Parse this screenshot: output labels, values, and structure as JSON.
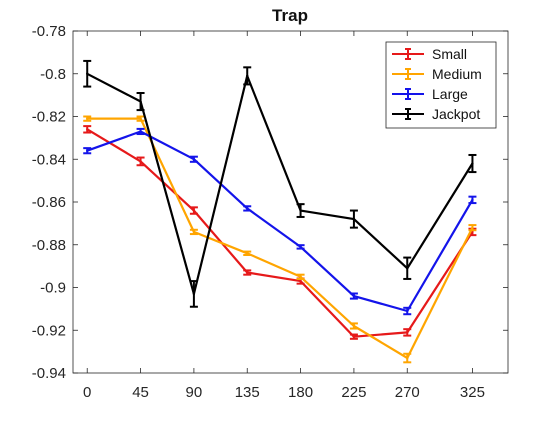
{
  "chart_data": {
    "type": "line",
    "title": "Trap",
    "xlabel": "",
    "ylabel": "",
    "x": [
      0,
      45,
      90,
      135,
      180,
      225,
      270,
      325
    ],
    "xlim": [
      -12,
      355
    ],
    "ylim": [
      -0.94,
      -0.78
    ],
    "x_ticks": [
      0,
      45,
      90,
      135,
      180,
      225,
      270,
      325
    ],
    "x_tick_labels": [
      "0",
      "45",
      "90",
      "135",
      "180",
      "225",
      "270",
      "325"
    ],
    "y_ticks": [
      -0.94,
      -0.92,
      -0.9,
      -0.88,
      -0.86,
      -0.84,
      -0.82,
      -0.8,
      -0.78
    ],
    "y_tick_labels": [
      "-0.94",
      "-0.92",
      "-0.9",
      "-0.88",
      "-0.86",
      "-0.84",
      "-0.82",
      "-0.8",
      "-0.78"
    ],
    "grid": false,
    "legend_position": "top-right",
    "error_bars": true,
    "series": [
      {
        "name": "Small",
        "color": "#e6191a",
        "values": [
          -0.826,
          -0.841,
          -0.864,
          -0.893,
          -0.897,
          -0.923,
          -0.921,
          -0.874
        ],
        "errors": [
          0.0015,
          0.0018,
          0.0015,
          0.001,
          0.0012,
          0.001,
          0.0015,
          0.0015
        ]
      },
      {
        "name": "Medium",
        "color": "#ffa500",
        "values": [
          -0.821,
          -0.821,
          -0.874,
          -0.884,
          -0.895,
          -0.918,
          -0.933,
          -0.872
        ],
        "errors": [
          0.001,
          0.001,
          0.001,
          0.0008,
          0.001,
          0.0012,
          0.002,
          0.0012
        ]
      },
      {
        "name": "Large",
        "color": "#1414ea",
        "values": [
          -0.836,
          -0.827,
          -0.84,
          -0.863,
          -0.881,
          -0.904,
          -0.911,
          -0.859
        ],
        "errors": [
          0.0012,
          0.0012,
          0.0012,
          0.001,
          0.0008,
          0.0012,
          0.0015,
          0.0015
        ]
      },
      {
        "name": "Jackpot",
        "color": "#000000",
        "values": [
          -0.8,
          -0.813,
          -0.903,
          -0.801,
          -0.864,
          -0.868,
          -0.891,
          -0.842
        ],
        "errors": [
          0.006,
          0.004,
          0.006,
          0.004,
          0.003,
          0.004,
          0.005,
          0.004
        ]
      }
    ]
  }
}
